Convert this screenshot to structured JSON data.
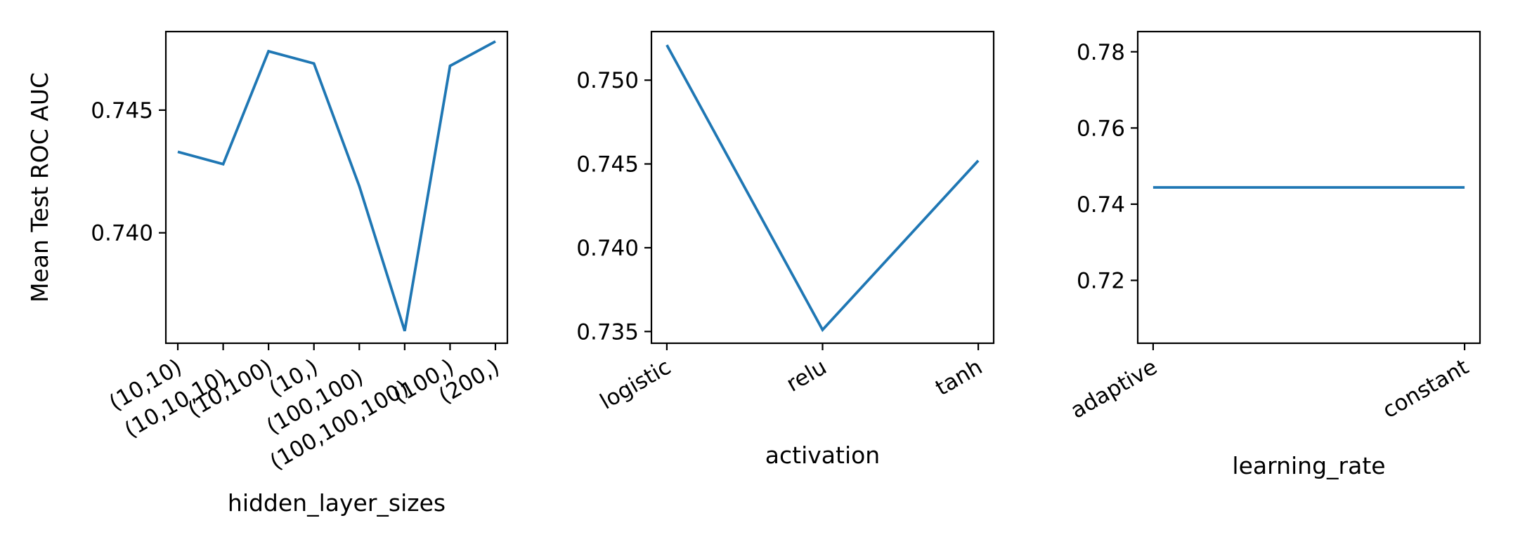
{
  "chart_data": [
    {
      "type": "line",
      "xlabel": "hidden_layer_sizes",
      "ylabel": "Mean Test ROC AUC",
      "categories": [
        "(10,10)",
        "(10,10,10)",
        "(10,100)",
        "(10,)",
        "(100,100)",
        "(100,100,100)",
        "(100,)",
        "(200,)"
      ],
      "series": [
        {
          "values": [
            0.7433,
            0.7428,
            0.7474,
            0.7469,
            0.7419,
            0.736,
            0.7468,
            0.7478
          ]
        }
      ],
      "ylim": [
        0.7355,
        0.7482
      ],
      "yticks": [
        0.74,
        0.745
      ],
      "ytick_labels": [
        "0.740",
        "0.745"
      ],
      "grid": false
    },
    {
      "type": "line",
      "xlabel": "activation",
      "ylabel": "",
      "categories": [
        "logistic",
        "relu",
        "tanh"
      ],
      "series": [
        {
          "values": [
            0.7521,
            0.7351,
            0.7452
          ]
        }
      ],
      "ylim": [
        0.7343,
        0.7529
      ],
      "yticks": [
        0.735,
        0.74,
        0.745,
        0.75
      ],
      "ytick_labels": [
        "0.735",
        "0.740",
        "0.745",
        "0.750"
      ],
      "grid": false
    },
    {
      "type": "line",
      "xlabel": "learning_rate",
      "ylabel": "",
      "categories": [
        "adaptive",
        "constant"
      ],
      "series": [
        {
          "values": [
            0.7444,
            0.7444
          ]
        }
      ],
      "ylim": [
        0.7035,
        0.7853
      ],
      "yticks": [
        0.72,
        0.74,
        0.76,
        0.78
      ],
      "ytick_labels": [
        "0.72",
        "0.74",
        "0.76",
        "0.78"
      ],
      "grid": false
    }
  ],
  "colors": {
    "line": "#1f77b4",
    "axis": "#000000"
  }
}
